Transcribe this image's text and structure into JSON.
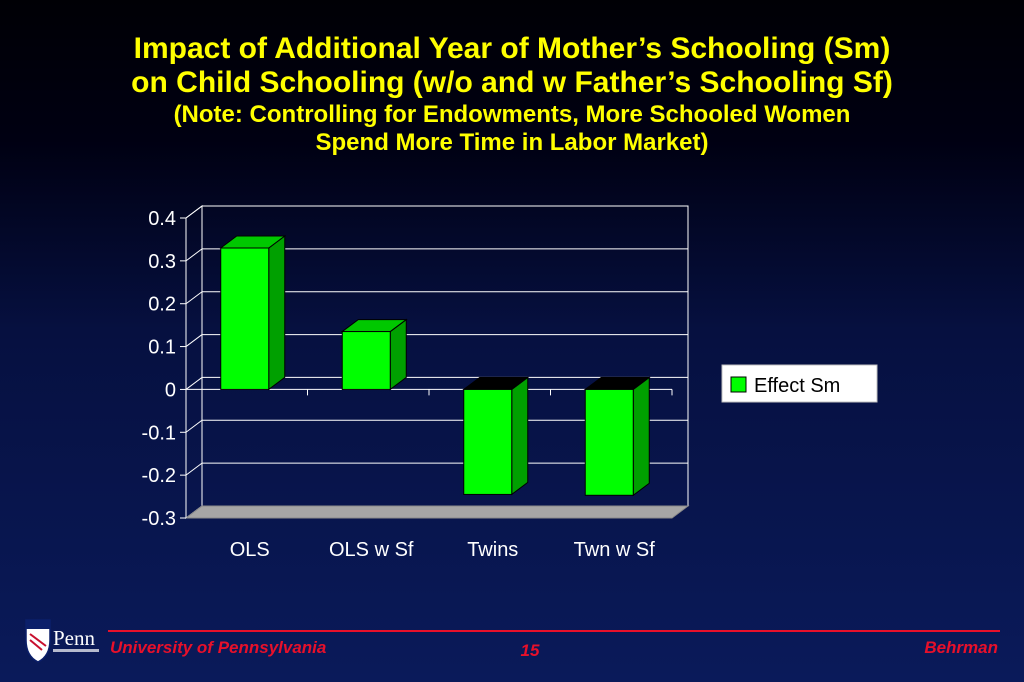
{
  "slide": {
    "title_line1": "Impact of Additional Year of Mother’s Schooling (Sm)",
    "title_line2": "on Child Schooling (w/o and w Father’s Schooling Sf)",
    "note_line1": "(Note:  Controlling for Endowments, More Schooled Women",
    "note_line2": "Spend More Time in Labor Market)",
    "title_color": "#ffff00"
  },
  "chart_data": {
    "type": "bar",
    "categories": [
      "OLS",
      "OLS w Sf",
      "Twins",
      "Twn w Sf"
    ],
    "series": [
      {
        "name": "Effect Sm",
        "values": [
          0.33,
          0.135,
          -0.245,
          -0.247
        ],
        "color": "#00ff00"
      }
    ],
    "ylim": [
      -0.3,
      0.4
    ],
    "yticks": [
      "0.4",
      "0.3",
      "0.2",
      "0.1",
      "0",
      "-0.1",
      "-0.2",
      "-0.3"
    ],
    "grid": true,
    "legend_position": "right"
  },
  "footer": {
    "university": "University of Pennsylvania",
    "page_number": "15",
    "author": "Behrman",
    "logo_text": "Penn",
    "accent_color": "#e8102a"
  }
}
